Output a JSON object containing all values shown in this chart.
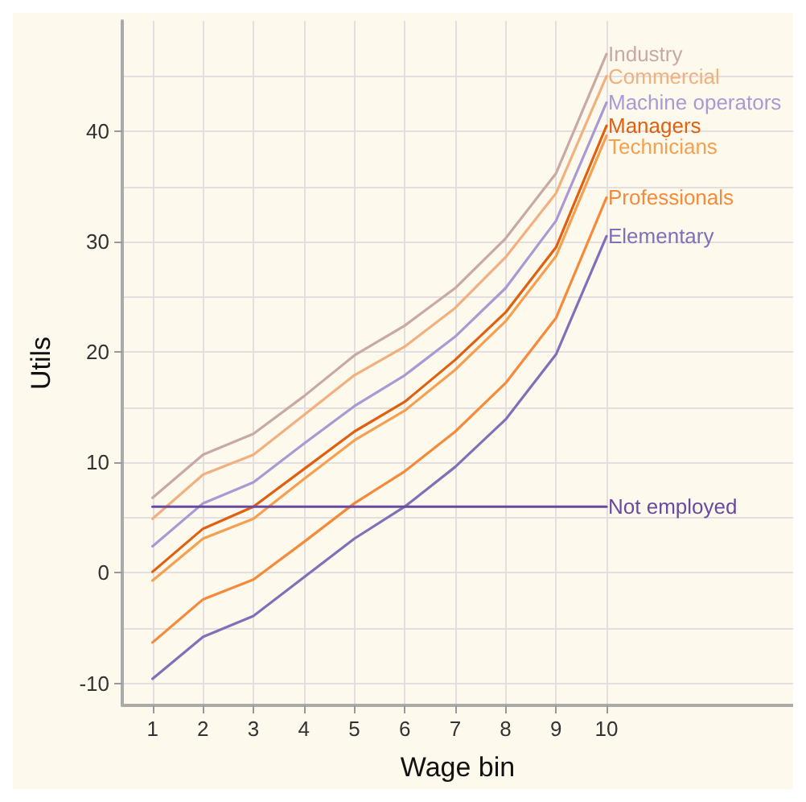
{
  "chart_data": {
    "type": "line",
    "xlabel": "Wage bin",
    "ylabel": "Utils",
    "x": [
      1,
      2,
      3,
      4,
      5,
      6,
      7,
      8,
      9,
      10
    ],
    "xlim": [
      0.4,
      13.7
    ],
    "xticks": [
      1,
      2,
      3,
      4,
      5,
      6,
      7,
      8,
      9,
      10
    ],
    "ylim": [
      -12,
      50
    ],
    "yticks": [
      -10,
      {
        "value": -5,
        "label": null
      },
      0,
      {
        "value": 5,
        "label": null
      },
      10,
      {
        "value": 15,
        "label": null
      },
      20,
      {
        "value": 25,
        "label": null
      },
      30,
      {
        "value": 35,
        "label": null
      },
      40,
      {
        "value": 45,
        "label": null
      }
    ],
    "grid": true,
    "legend": false,
    "marker": "none",
    "line_style": "solid",
    "series": [
      {
        "name": "Industry",
        "color": "#c9a9a6",
        "values": [
          6.8,
          10.7,
          12.6,
          16.0,
          19.7,
          22.4,
          25.8,
          30.3,
          36.2,
          47.0
        ]
      },
      {
        "name": "Commercial",
        "color": "#f1b07d",
        "values": [
          4.9,
          8.9,
          10.7,
          14.3,
          17.9,
          20.5,
          24.0,
          28.6,
          34.4,
          45.0
        ]
      },
      {
        "name": "Machine operators",
        "color": "#a89ad4",
        "values": [
          2.4,
          6.3,
          8.2,
          11.7,
          15.1,
          17.9,
          21.4,
          25.8,
          31.9,
          42.6
        ]
      },
      {
        "name": "Managers",
        "color": "#e06010",
        "values": [
          0.1,
          4.0,
          6.0,
          9.4,
          12.8,
          15.5,
          19.3,
          23.6,
          29.5,
          40.5
        ]
      },
      {
        "name": "Technicians",
        "color": "#f5a050",
        "values": [
          -0.7,
          3.1,
          4.9,
          8.5,
          12.0,
          14.7,
          18.4,
          22.8,
          28.7,
          39.6
        ]
      },
      {
        "name": "Professionals",
        "color": "#f58a3a",
        "values": [
          -6.3,
          -2.4,
          -0.6,
          2.8,
          6.3,
          9.2,
          12.8,
          17.2,
          23.1,
          34.0
        ]
      },
      {
        "name": "Elementary",
        "color": "#8070b8",
        "values": [
          -9.6,
          -5.8,
          -3.9,
          -0.4,
          3.1,
          6.0,
          9.6,
          13.9,
          19.8,
          30.5
        ]
      },
      {
        "name": "Not employed",
        "color": "#6a4a9f",
        "values": [
          6.0,
          6.0,
          6.0,
          6.0,
          6.0,
          6.0,
          6.0,
          6.0,
          6.0,
          6.0
        ]
      }
    ]
  }
}
